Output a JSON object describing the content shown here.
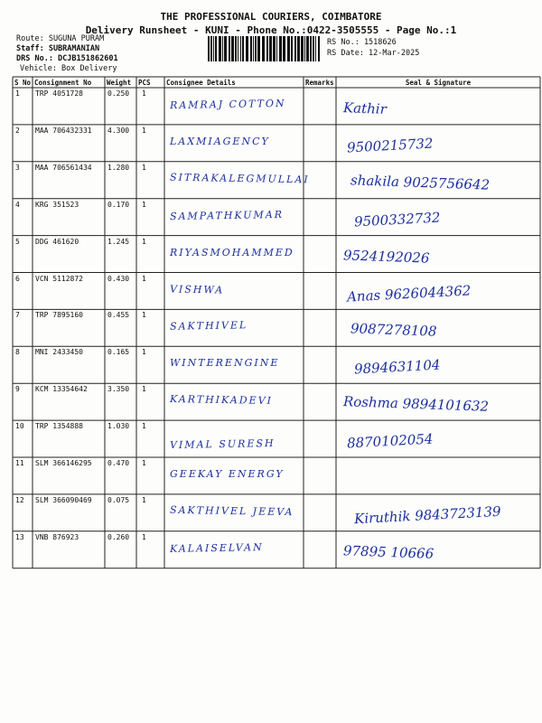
{
  "header": {
    "company": "THE PROFESSIONAL COURIERS, COIMBATORE",
    "subtitle": "Delivery Runsheet - KUNI - Phone No.:0422-3505555 - Page No.:1",
    "route": "Route: SUGUNA PURAM",
    "staff": "Staff: SUBRAMANIAN",
    "drs": "DRS No.: DCJB151862601",
    "vehicle": "Vehicle: Box Delivery",
    "rs_no": "RS No.: 1518626",
    "rs_date": "RS Date: 12-Mar-2025"
  },
  "table": {
    "columns": [
      "S No",
      "Consignment No",
      "Weight",
      "PCS",
      "Consignee Details",
      "Remarks",
      "Seal & Signature"
    ],
    "rows": [
      {
        "sno": 1,
        "consignment": "TRP 4051728",
        "weight": "0.250",
        "pcs": 1,
        "consignee": "RAMRAJ COTTON",
        "signature": "Kathir"
      },
      {
        "sno": 2,
        "consignment": "MAA 706432331",
        "weight": "4.300",
        "pcs": 1,
        "consignee": "LAXMIAGENCY",
        "signature": "9500215732"
      },
      {
        "sno": 3,
        "consignment": "MAA 706561434",
        "weight": "1.280",
        "pcs": 1,
        "consignee": "SITRAKALEGMULLAI",
        "signature": "shakila 9025756642"
      },
      {
        "sno": 4,
        "consignment": "KRG 351523",
        "weight": "0.170",
        "pcs": 1,
        "consignee": "SAMPATHKUMAR",
        "signature": "9500332732"
      },
      {
        "sno": 5,
        "consignment": "DDG 461620",
        "weight": "1.245",
        "pcs": 1,
        "consignee": "RIYASMOHAMMED",
        "signature": "9524192026"
      },
      {
        "sno": 6,
        "consignment": "VCN 5112872",
        "weight": "0.430",
        "pcs": 1,
        "consignee": "VISHWA",
        "signature": "Anas 9626044362"
      },
      {
        "sno": 7,
        "consignment": "TRP 7895160",
        "weight": "0.455",
        "pcs": 1,
        "consignee": "SAKTHIVEL",
        "signature": "9087278108"
      },
      {
        "sno": 8,
        "consignment": "MNI 2433450",
        "weight": "0.165",
        "pcs": 1,
        "consignee": "WINTERENGINE",
        "signature": "9894631104"
      },
      {
        "sno": 9,
        "consignment": "KCM 13354642",
        "weight": "3.350",
        "pcs": 1,
        "consignee": "KARTHIKADEVI",
        "signature": "Roshma 9894101632"
      },
      {
        "sno": 10,
        "consignment": "TRP 1354888",
        "weight": "1.030",
        "pcs": 1,
        "consignee": "VIMAL SURESH",
        "signature": "8870102054"
      },
      {
        "sno": 11,
        "consignment": "SLM 366146295",
        "weight": "0.470",
        "pcs": 1,
        "consignee": "GEEKAY ENERGY"
      },
      {
        "sno": 12,
        "consignment": "SLM 366090469",
        "weight": "0.075",
        "pcs": 1,
        "consignee": "SAKTHIVEL JEEVA",
        "signature": "Kiruthik 9843723139"
      },
      {
        "sno": 13,
        "consignment": "VNB 876923",
        "weight": "0.260",
        "pcs": 1,
        "consignee": "KALAISELVAN",
        "signature": "97895 10666"
      }
    ]
  }
}
